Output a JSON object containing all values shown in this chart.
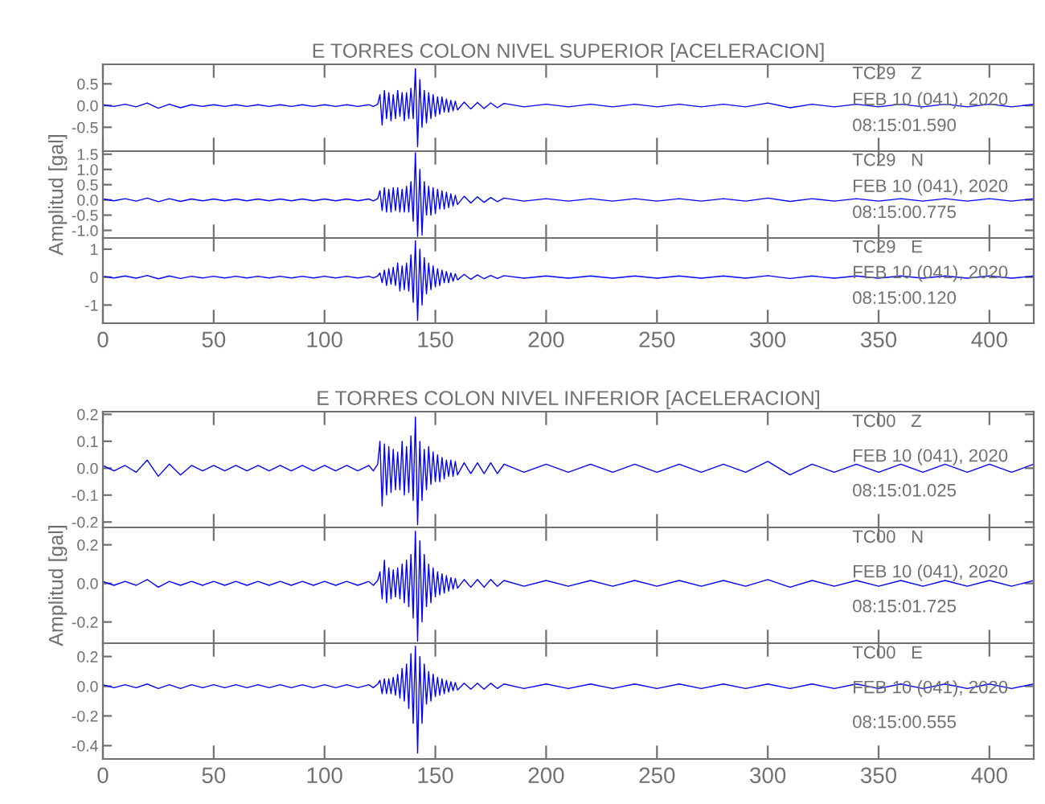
{
  "chart_data": [
    {
      "type": "line",
      "title": "E TORRES COLON NIVEL SUPERIOR [ACELERACION]",
      "tick_labels": "y",
      "x": [
        0,
        5,
        10,
        15,
        20,
        25,
        30,
        35,
        40,
        45,
        50,
        55,
        60,
        65,
        70,
        75,
        80,
        85,
        90,
        95,
        100,
        105,
        110,
        115,
        120,
        122,
        124,
        125,
        126,
        127,
        128,
        129,
        130,
        131,
        132,
        133,
        134,
        135,
        136,
        137,
        138,
        139,
        140,
        141,
        142,
        143,
        144,
        145,
        146,
        147,
        148,
        149,
        150,
        151,
        152,
        153,
        154,
        155,
        156,
        157,
        158,
        159,
        160,
        163,
        166,
        169,
        172,
        175,
        178,
        181,
        190,
        200,
        210,
        220,
        230,
        240,
        250,
        260,
        270,
        280,
        290,
        300,
        310,
        320,
        330,
        340,
        350,
        360,
        370,
        380,
        390,
        400,
        410,
        420
      ],
      "series": [
        {
          "color": "#0000ff",
          "values": [
            0.02,
            -0.02,
            0.03,
            -0.03,
            0.06,
            -0.06,
            0.03,
            -0.05,
            0.02,
            -0.02,
            0.02,
            -0.02,
            0.02,
            -0.02,
            0.02,
            -0.02,
            0.02,
            -0.02,
            0.02,
            -0.02,
            0.02,
            -0.02,
            0.02,
            -0.02,
            0.02,
            -0.02,
            0.03,
            0.25,
            -0.45,
            0.35,
            -0.3,
            0.3,
            -0.35,
            0.25,
            -0.3,
            0.35,
            -0.25,
            0.3,
            -0.35,
            0.3,
            -0.3,
            0.4,
            -0.3,
            0.85,
            -0.95,
            0.6,
            -0.5,
            0.35,
            -0.4,
            0.3,
            -0.3,
            0.25,
            -0.25,
            0.2,
            -0.2,
            0.2,
            -0.15,
            0.15,
            -0.15,
            0.12,
            -0.12,
            0.1,
            -0.1,
            0.08,
            -0.08,
            0.07,
            -0.07,
            0.06,
            -0.05,
            0.05,
            -0.03,
            0.03,
            -0.03,
            0.03,
            -0.03,
            0.03,
            -0.03,
            0.03,
            -0.03,
            0.03,
            -0.03,
            0.06,
            -0.05,
            0.03,
            -0.03,
            0.03,
            -0.03,
            0.03,
            -0.03,
            0.03,
            -0.03,
            0.03,
            -0.03,
            0.03
          ]
        }
      ],
      "xlim": [
        0,
        420
      ],
      "xticks": [
        0,
        50,
        100,
        150,
        200,
        250,
        300,
        350,
        400
      ],
      "ylim": [
        -1.05,
        0.95
      ],
      "yticks": [
        {
          "value": -0.5,
          "label": "-0.5"
        },
        {
          "value": 0,
          "label": "0.0"
        },
        {
          "value": 0.5,
          "label": "0.5"
        }
      ],
      "annotations": [
        "TC29   Z",
        "FEB 10 (041), 2020",
        "08:15:01.590"
      ]
    },
    {
      "type": "line",
      "ylabel": "Amplitud [gal]",
      "tick_labels": "y",
      "x": [
        0,
        5,
        10,
        15,
        20,
        25,
        30,
        35,
        40,
        45,
        50,
        55,
        60,
        65,
        70,
        75,
        80,
        85,
        90,
        95,
        100,
        105,
        110,
        115,
        120,
        122,
        124,
        125,
        126,
        127,
        128,
        129,
        130,
        131,
        132,
        133,
        134,
        135,
        136,
        137,
        138,
        139,
        140,
        141,
        142,
        143,
        144,
        145,
        146,
        147,
        148,
        149,
        150,
        151,
        152,
        153,
        154,
        155,
        156,
        157,
        158,
        159,
        160,
        163,
        166,
        169,
        172,
        175,
        178,
        181,
        190,
        200,
        210,
        220,
        230,
        240,
        250,
        260,
        270,
        280,
        290,
        300,
        310,
        320,
        330,
        340,
        350,
        360,
        370,
        380,
        390,
        400,
        410,
        420
      ],
      "series": [
        {
          "color": "#0000ff",
          "values": [
            0.03,
            -0.03,
            0.04,
            -0.04,
            0.06,
            -0.06,
            0.04,
            -0.05,
            0.03,
            -0.03,
            0.03,
            -0.03,
            0.03,
            -0.03,
            0.03,
            -0.03,
            0.03,
            -0.03,
            0.03,
            -0.03,
            0.03,
            -0.03,
            0.03,
            -0.03,
            0.03,
            -0.03,
            0.04,
            0.3,
            -0.35,
            0.4,
            -0.4,
            0.35,
            -0.4,
            0.4,
            -0.35,
            0.4,
            -0.4,
            0.35,
            -0.4,
            0.45,
            -0.4,
            0.6,
            -0.7,
            1.55,
            -1.2,
            1.0,
            -1.15,
            0.6,
            -0.5,
            0.45,
            -0.5,
            0.4,
            -0.45,
            0.35,
            -0.3,
            0.3,
            -0.3,
            0.25,
            -0.25,
            0.2,
            -0.2,
            0.15,
            -0.15,
            0.12,
            -0.1,
            0.1,
            -0.08,
            0.08,
            -0.06,
            0.06,
            -0.04,
            0.04,
            -0.04,
            0.04,
            -0.04,
            0.04,
            -0.04,
            0.04,
            -0.04,
            0.04,
            -0.04,
            0.06,
            -0.05,
            0.04,
            -0.04,
            0.04,
            -0.04,
            0.04,
            -0.04,
            0.04,
            -0.04,
            0.04,
            -0.04,
            0.04
          ]
        }
      ],
      "xlim": [
        0,
        420
      ],
      "xticks": [
        0,
        50,
        100,
        150,
        200,
        250,
        300,
        350,
        400
      ],
      "ylim": [
        -1.25,
        1.6
      ],
      "yticks": [
        {
          "value": -1.0,
          "label": "-1.0"
        },
        {
          "value": -0.5,
          "label": "-0.5"
        },
        {
          "value": 0,
          "label": "0.0"
        },
        {
          "value": 0.5,
          "label": "0.5"
        },
        {
          "value": 1.0,
          "label": "1.0"
        },
        {
          "value": 1.5,
          "label": "1.5"
        }
      ],
      "annotations": [
        "TC29   N",
        "FEB 10 (041), 2020",
        "08:15:00.775"
      ]
    },
    {
      "type": "line",
      "x": [
        0,
        5,
        10,
        15,
        20,
        25,
        30,
        35,
        40,
        45,
        50,
        55,
        60,
        65,
        70,
        75,
        80,
        85,
        90,
        95,
        100,
        105,
        110,
        115,
        120,
        122,
        124,
        125,
        126,
        127,
        128,
        129,
        130,
        131,
        132,
        133,
        134,
        135,
        136,
        137,
        138,
        139,
        140,
        141,
        142,
        143,
        144,
        145,
        146,
        147,
        148,
        149,
        150,
        151,
        152,
        153,
        154,
        155,
        156,
        157,
        158,
        159,
        160,
        163,
        166,
        169,
        172,
        175,
        178,
        181,
        190,
        200,
        210,
        220,
        230,
        240,
        250,
        260,
        270,
        280,
        290,
        300,
        310,
        320,
        330,
        340,
        350,
        360,
        370,
        380,
        390,
        400,
        410,
        420
      ],
      "series": [
        {
          "color": "#0000ff",
          "values": [
            0.03,
            -0.03,
            0.04,
            -0.04,
            0.06,
            -0.06,
            0.04,
            -0.05,
            0.03,
            -0.03,
            0.03,
            -0.03,
            0.03,
            -0.03,
            0.03,
            -0.03,
            0.03,
            -0.03,
            0.03,
            -0.03,
            0.03,
            -0.03,
            0.03,
            -0.03,
            0.03,
            -0.03,
            0.04,
            0.15,
            -0.2,
            0.25,
            -0.3,
            0.3,
            -0.25,
            0.35,
            -0.3,
            0.5,
            -0.5,
            0.4,
            -0.45,
            0.5,
            -0.5,
            0.8,
            -0.9,
            1.3,
            -1.55,
            1.0,
            -1.0,
            0.7,
            -0.6,
            0.5,
            -0.45,
            0.4,
            -0.35,
            0.3,
            -0.3,
            0.25,
            -0.2,
            0.2,
            -0.2,
            0.15,
            -0.15,
            0.12,
            -0.1,
            0.1,
            -0.08,
            0.08,
            -0.06,
            0.06,
            -0.05,
            0.05,
            -0.04,
            0.04,
            -0.04,
            0.04,
            -0.04,
            0.04,
            -0.04,
            0.04,
            -0.04,
            0.04,
            -0.04,
            0.05,
            -0.05,
            0.04,
            -0.04,
            0.04,
            -0.04,
            0.04,
            -0.04,
            0.04,
            -0.04,
            0.04,
            -0.04,
            0.04
          ]
        }
      ],
      "xlim": [
        0,
        420
      ],
      "xticks": [
        0,
        50,
        100,
        150,
        200,
        250,
        300,
        350,
        400
      ],
      "ylim": [
        -1.65,
        1.4
      ],
      "yticks": [
        -1,
        0,
        1
      ],
      "annotations": [
        "TC29   E",
        "FEB 10 (041), 2020",
        "08:15:00.120"
      ]
    },
    {
      "type": "line",
      "title": "E TORRES COLON NIVEL INFERIOR [ACELERACION]",
      "tick_labels": "y",
      "x": [
        0,
        5,
        10,
        15,
        20,
        25,
        30,
        35,
        40,
        45,
        50,
        55,
        60,
        65,
        70,
        75,
        80,
        85,
        90,
        95,
        100,
        105,
        110,
        115,
        120,
        122,
        124,
        125,
        126,
        127,
        128,
        129,
        130,
        131,
        132,
        133,
        134,
        135,
        136,
        137,
        138,
        139,
        140,
        141,
        142,
        143,
        144,
        145,
        146,
        147,
        148,
        149,
        150,
        151,
        152,
        153,
        154,
        155,
        156,
        157,
        158,
        159,
        160,
        163,
        166,
        169,
        172,
        175,
        178,
        181,
        190,
        200,
        210,
        220,
        230,
        240,
        250,
        260,
        270,
        280,
        290,
        300,
        310,
        320,
        330,
        340,
        350,
        360,
        370,
        380,
        390,
        400,
        410,
        420
      ],
      "series": [
        {
          "color": "#0000ff",
          "values": [
            0.01,
            -0.01,
            0.01,
            -0.015,
            0.03,
            -0.03,
            0.015,
            -0.025,
            0.01,
            -0.01,
            0.01,
            -0.01,
            0.01,
            -0.01,
            0.01,
            -0.01,
            0.01,
            -0.01,
            0.01,
            -0.01,
            0.01,
            -0.01,
            0.01,
            -0.01,
            0.01,
            -0.01,
            0.015,
            0.1,
            -0.14,
            0.09,
            -0.1,
            0.08,
            -0.09,
            0.07,
            -0.08,
            0.06,
            -0.08,
            0.1,
            -0.1,
            0.08,
            -0.09,
            0.12,
            -0.12,
            0.19,
            -0.21,
            0.1,
            -0.12,
            0.07,
            -0.08,
            0.08,
            -0.06,
            0.06,
            -0.05,
            0.05,
            -0.05,
            0.04,
            -0.04,
            0.03,
            -0.03,
            0.03,
            -0.03,
            0.025,
            -0.025,
            0.02,
            -0.02,
            0.02,
            -0.02,
            0.02,
            -0.02,
            0.015,
            -0.015,
            0.015,
            -0.015,
            0.015,
            -0.015,
            0.015,
            -0.015,
            0.015,
            -0.015,
            0.015,
            -0.015,
            0.025,
            -0.025,
            0.015,
            -0.015,
            0.015,
            -0.015,
            0.015,
            -0.015,
            0.015,
            -0.015,
            0.015,
            -0.015,
            0.015
          ]
        }
      ],
      "xlim": [
        0,
        420
      ],
      "xticks": [
        0,
        50,
        100,
        150,
        200,
        250,
        300,
        350,
        400
      ],
      "ylim": [
        -0.22,
        0.21
      ],
      "yticks": [
        {
          "value": -0.2,
          "label": "-0.2"
        },
        {
          "value": -0.1,
          "label": "-0.1"
        },
        {
          "value": 0,
          "label": "0.0"
        },
        {
          "value": 0.1,
          "label": "0.1"
        },
        {
          "value": 0.2,
          "label": "0.2"
        }
      ],
      "annotations": [
        "TC00   Z",
        "FEB 10 (041), 2020",
        "08:15:01.025"
      ]
    },
    {
      "type": "line",
      "ylabel": "Amplitud [gal]",
      "tick_labels": "y",
      "x": [
        0,
        5,
        10,
        15,
        20,
        25,
        30,
        35,
        40,
        45,
        50,
        55,
        60,
        65,
        70,
        75,
        80,
        85,
        90,
        95,
        100,
        105,
        110,
        115,
        120,
        122,
        124,
        125,
        126,
        127,
        128,
        129,
        130,
        131,
        132,
        133,
        134,
        135,
        136,
        137,
        138,
        139,
        140,
        141,
        142,
        143,
        144,
        145,
        146,
        147,
        148,
        149,
        150,
        151,
        152,
        153,
        154,
        155,
        156,
        157,
        158,
        159,
        160,
        163,
        166,
        169,
        172,
        175,
        178,
        181,
        190,
        200,
        210,
        220,
        230,
        240,
        250,
        260,
        270,
        280,
        290,
        300,
        310,
        320,
        330,
        340,
        350,
        360,
        370,
        380,
        390,
        400,
        410,
        420
      ],
      "series": [
        {
          "color": "#0000ff",
          "values": [
            0.01,
            -0.01,
            0.01,
            -0.01,
            0.02,
            -0.02,
            0.01,
            -0.01,
            0.01,
            -0.01,
            0.01,
            -0.01,
            0.01,
            -0.01,
            0.01,
            -0.01,
            0.01,
            -0.01,
            0.01,
            -0.01,
            0.01,
            -0.01,
            0.01,
            -0.01,
            0.01,
            -0.01,
            0.015,
            0.06,
            -0.08,
            0.12,
            -0.1,
            0.08,
            -0.08,
            0.07,
            -0.07,
            0.08,
            -0.08,
            0.1,
            -0.1,
            0.12,
            -0.12,
            0.15,
            -0.18,
            0.27,
            -0.3,
            0.22,
            -0.2,
            0.15,
            -0.12,
            0.1,
            -0.1,
            0.08,
            -0.07,
            0.06,
            -0.06,
            0.05,
            -0.05,
            0.04,
            -0.04,
            0.03,
            -0.03,
            0.025,
            -0.025,
            0.02,
            -0.02,
            0.02,
            -0.02,
            0.02,
            -0.015,
            0.015,
            -0.015,
            0.015,
            -0.015,
            0.015,
            -0.015,
            0.015,
            -0.015,
            0.015,
            -0.015,
            0.015,
            -0.015,
            0.02,
            -0.02,
            0.015,
            -0.015,
            0.015,
            -0.015,
            0.015,
            -0.015,
            0.015,
            -0.015,
            0.015,
            -0.015,
            0.015
          ]
        }
      ],
      "xlim": [
        0,
        420
      ],
      "xticks": [
        0,
        50,
        100,
        150,
        200,
        250,
        300,
        350,
        400
      ],
      "ylim": [
        -0.31,
        0.29
      ],
      "yticks": [
        {
          "value": -0.2,
          "label": "-0.2"
        },
        {
          "value": 0,
          "label": "0.0"
        },
        {
          "value": 0.2,
          "label": "0.2"
        }
      ],
      "annotations": [
        "TC00   N",
        "FEB 10 (041), 2020",
        "08:15:01.725"
      ]
    },
    {
      "type": "line",
      "x": [
        0,
        5,
        10,
        15,
        20,
        25,
        30,
        35,
        40,
        45,
        50,
        55,
        60,
        65,
        70,
        75,
        80,
        85,
        90,
        95,
        100,
        105,
        110,
        115,
        120,
        122,
        124,
        125,
        126,
        127,
        128,
        129,
        130,
        131,
        132,
        133,
        134,
        135,
        136,
        137,
        138,
        139,
        140,
        141,
        142,
        143,
        144,
        145,
        146,
        147,
        148,
        149,
        150,
        151,
        152,
        153,
        154,
        155,
        156,
        157,
        158,
        159,
        160,
        163,
        166,
        169,
        172,
        175,
        178,
        181,
        190,
        200,
        210,
        220,
        230,
        240,
        250,
        260,
        270,
        280,
        290,
        300,
        310,
        320,
        330,
        340,
        350,
        360,
        370,
        380,
        390,
        400,
        410,
        420
      ],
      "series": [
        {
          "color": "#0000ff",
          "values": [
            0.01,
            -0.01,
            0.01,
            -0.01,
            0.015,
            -0.015,
            0.01,
            -0.015,
            0.01,
            -0.01,
            0.01,
            -0.01,
            0.01,
            -0.01,
            0.01,
            -0.01,
            0.01,
            -0.01,
            0.01,
            -0.01,
            0.01,
            -0.01,
            0.01,
            -0.01,
            0.01,
            -0.01,
            0.015,
            0.04,
            -0.05,
            0.05,
            -0.05,
            0.05,
            -0.05,
            0.06,
            -0.06,
            0.08,
            -0.08,
            0.12,
            -0.1,
            0.15,
            -0.15,
            0.22,
            -0.25,
            0.27,
            -0.45,
            0.2,
            -0.25,
            0.15,
            -0.12,
            0.1,
            -0.1,
            0.08,
            -0.07,
            0.06,
            -0.06,
            0.05,
            -0.05,
            0.04,
            -0.04,
            0.03,
            -0.03,
            0.025,
            -0.025,
            0.02,
            -0.02,
            0.02,
            -0.02,
            0.02,
            -0.015,
            0.015,
            -0.015,
            0.015,
            -0.015,
            0.015,
            -0.015,
            0.015,
            -0.015,
            0.015,
            -0.015,
            0.015,
            -0.015,
            0.015,
            -0.015,
            0.015,
            -0.015,
            0.015,
            -0.015,
            0.015,
            -0.015,
            0.015,
            -0.015,
            0.015,
            -0.015,
            0.015
          ]
        }
      ],
      "xlim": [
        0,
        420
      ],
      "xticks": [
        0,
        50,
        100,
        150,
        200,
        250,
        300,
        350,
        400
      ],
      "ylim": [
        -0.49,
        0.29
      ],
      "yticks": [
        {
          "value": -0.4,
          "label": "-0.4"
        },
        {
          "value": -0.2,
          "label": "-0.2"
        },
        {
          "value": 0,
          "label": "0.0"
        },
        {
          "value": 0.2,
          "label": "0.2"
        }
      ],
      "annotations": [
        "TC00   E",
        "FEB 10 (041), 2020",
        "08:15:00.555"
      ]
    }
  ]
}
